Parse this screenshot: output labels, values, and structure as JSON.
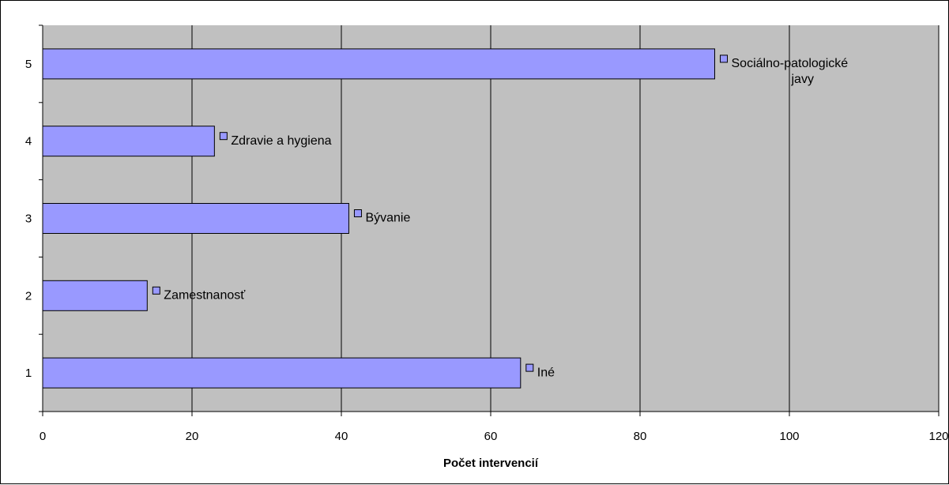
{
  "chart_data": {
    "type": "bar",
    "orientation": "horizontal",
    "categories": [
      "1",
      "2",
      "3",
      "4",
      "5"
    ],
    "values": [
      64,
      14,
      41,
      23,
      90
    ],
    "data_labels": [
      [
        "Iné"
      ],
      [
        "Zamestnanosť"
      ],
      [
        "Bývanie"
      ],
      [
        "Zdravie a hygiena"
      ],
      [
        "Sociálno-patologické",
        "javy"
      ]
    ],
    "x_ticks": [
      "0",
      "20",
      "40",
      "60",
      "80",
      "100",
      "120"
    ],
    "xlabel": "Počet intervencií",
    "ylabel": "",
    "title": "",
    "xlim": [
      0,
      120
    ],
    "grid": "vertical",
    "legend": "none",
    "colors": {
      "bar_fill": "#9999ff",
      "bar_stroke": "#000000",
      "plot_background": "#c0c0c0",
      "gridline": "#000000",
      "legend_key": "#9999ff"
    }
  }
}
